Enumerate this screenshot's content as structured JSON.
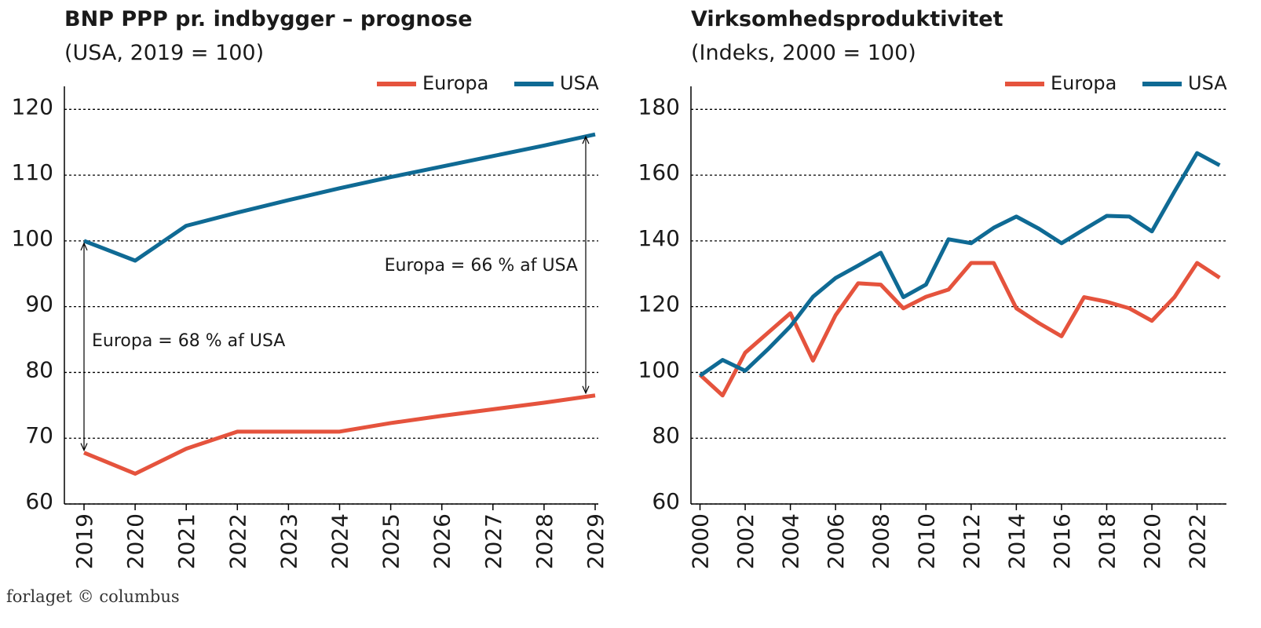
{
  "chart_data": [
    {
      "type": "line",
      "title": "BNP PPP pr. indbygger – prognose",
      "subtitle": "(USA, 2019 = 100)",
      "categories": [
        "2019",
        "2020",
        "2021",
        "2022",
        "2023",
        "2024",
        "2025",
        "2026",
        "2027",
        "2028",
        "2029"
      ],
      "series": [
        {
          "name": "Europa",
          "color": "#e5533d",
          "values": [
            67.8,
            64.6,
            68.4,
            71,
            71,
            71,
            72.3,
            73.4,
            74.4,
            75.4,
            76.5
          ]
        },
        {
          "name": "USA",
          "color": "#0f6a94",
          "values": [
            100,
            97,
            102.3,
            104.3,
            106.2,
            108,
            109.7,
            111.3,
            112.9,
            114.5,
            116.2
          ]
        }
      ],
      "ylim": [
        60,
        123.5
      ],
      "yticks": [
        60,
        70,
        80,
        90,
        100,
        110,
        120
      ],
      "grid": true,
      "legend": "top-right",
      "annotations": [
        "Europa = 66 % af USA",
        "Europa = 68 % af USA"
      ]
    },
    {
      "type": "line",
      "title": "Virksomhedsproduktivitet",
      "subtitle": "(Indeks, 2000 = 100)",
      "x": [
        2000,
        2001,
        2002,
        2003,
        2004,
        2005,
        2006,
        2007,
        2008,
        2009,
        2010,
        2011,
        2012,
        2013,
        2014,
        2015,
        2016,
        2017,
        2018,
        2019,
        2020,
        2021,
        2022,
        2023
      ],
      "series": [
        {
          "name": "Europa",
          "color": "#e5533d",
          "values": [
            99.3,
            93,
            106,
            112,
            118,
            103.6,
            117.4,
            127.1,
            126.7,
            119.5,
            123,
            125.2,
            133.3,
            133.3,
            119.5,
            115,
            111,
            122.9,
            121.5,
            119.5,
            115.7,
            122.9,
            133.3,
            128.8
          ]
        },
        {
          "name": "USA",
          "color": "#0f6a94",
          "values": [
            99,
            103.8,
            100.5,
            107,
            114,
            123,
            128.7,
            132.5,
            136.4,
            122.9,
            126.7,
            140.5,
            139.3,
            144,
            147.4,
            143.7,
            139.3,
            143.5,
            147.6,
            147.4,
            142.9,
            155,
            166.7,
            163
          ]
        }
      ],
      "xlim": [
        1999.6,
        2023.3
      ],
      "xticks": [
        2000,
        2002,
        2004,
        2006,
        2008,
        2010,
        2012,
        2014,
        2016,
        2018,
        2020,
        2022
      ],
      "ylim": [
        60,
        187
      ],
      "yticks": [
        60,
        80,
        100,
        120,
        140,
        160,
        180
      ],
      "grid": true,
      "legend": "top-right"
    }
  ],
  "footer": "forlaget © columbus"
}
